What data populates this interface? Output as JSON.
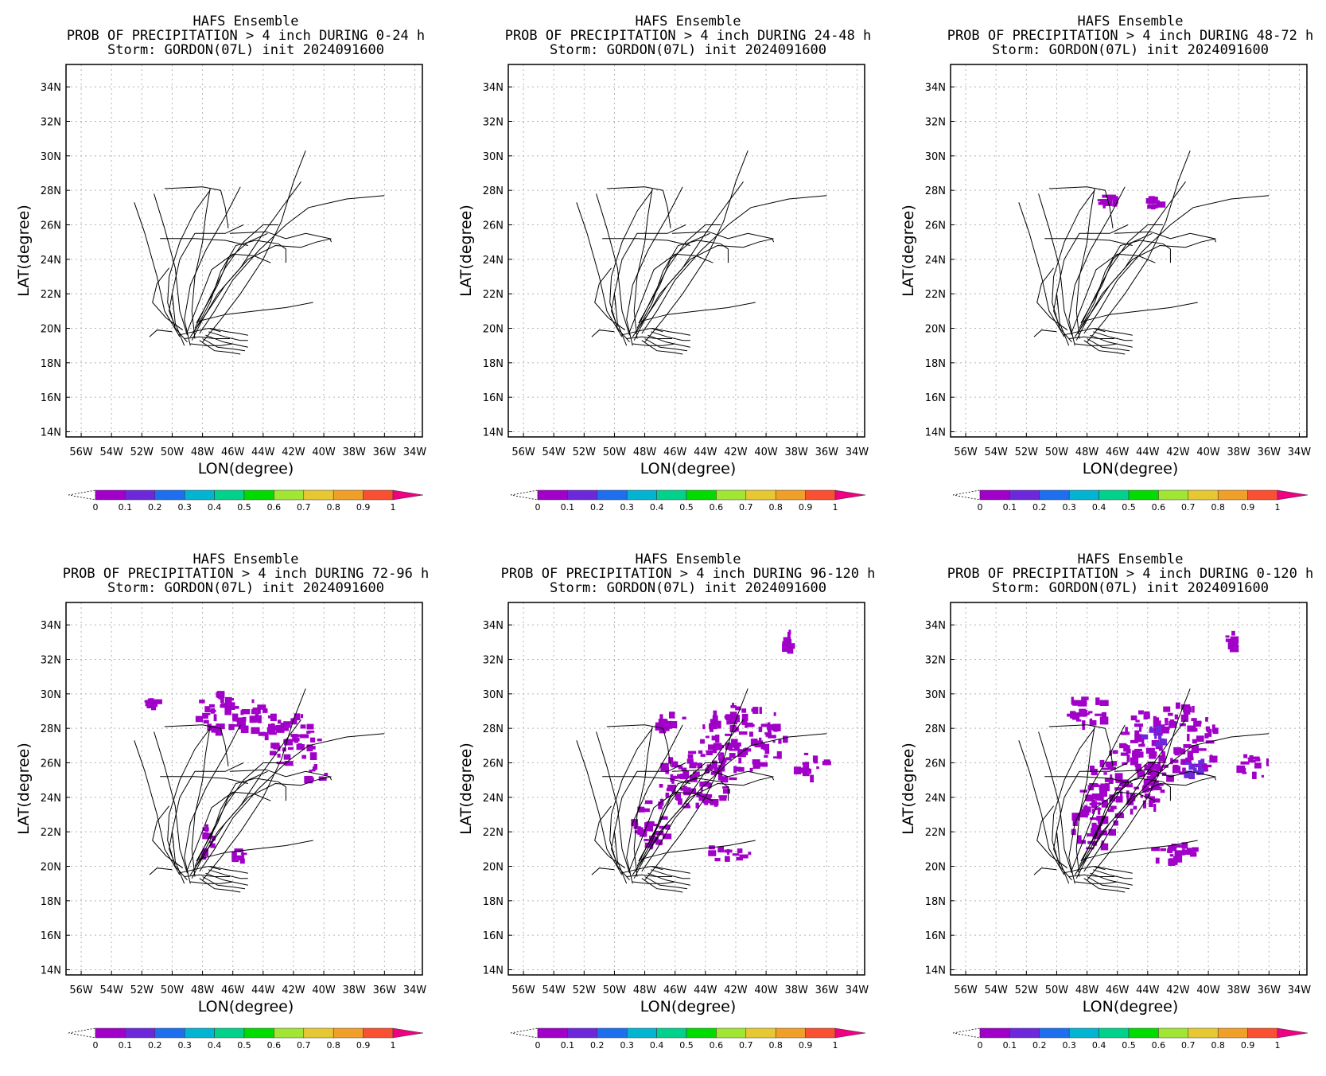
{
  "chart_data": [
    {
      "type": "heatmap",
      "title": [
        "HAFS Ensemble",
        "PROB OF PRECIPITATION > 4 inch DURING  0-24 h",
        "Storm: GORDON(07L) init 2024091600"
      ],
      "xlabel": "LON(degree)",
      "ylabel": "LAT(degree)",
      "x_ticks": [
        "56W",
        "54W",
        "52W",
        "50W",
        "48W",
        "46W",
        "44W",
        "42W",
        "40W",
        "38W",
        "36W",
        "34W"
      ],
      "y_ticks": [
        "14N",
        "16N",
        "18N",
        "20N",
        "22N",
        "24N",
        "26N",
        "28N",
        "30N",
        "32N",
        "34N"
      ],
      "xlim": [
        -57,
        -33.5
      ],
      "ylim": [
        13.7,
        35.3
      ],
      "grid": true,
      "colorbar": {
        "labels": [
          "0",
          "0.1",
          "0.2",
          "0.3",
          "0.4",
          "0.5",
          "0.6",
          "0.7",
          "0.8",
          "0.9",
          "1"
        ]
      },
      "probability_areas": []
    },
    {
      "type": "heatmap",
      "title": [
        "HAFS Ensemble",
        "PROB OF PRECIPITATION > 4 inch DURING 24-48 h",
        "Storm: GORDON(07L) init 2024091600"
      ],
      "xlabel": "LON(degree)",
      "ylabel": "LAT(degree)",
      "x_ticks": [
        "56W",
        "54W",
        "52W",
        "50W",
        "48W",
        "46W",
        "44W",
        "42W",
        "40W",
        "38W",
        "36W",
        "34W"
      ],
      "y_ticks": [
        "14N",
        "16N",
        "18N",
        "20N",
        "22N",
        "24N",
        "26N",
        "28N",
        "30N",
        "32N",
        "34N"
      ],
      "xlim": [
        -57,
        -33.5
      ],
      "ylim": [
        13.7,
        35.3
      ],
      "grid": true,
      "colorbar": {
        "labels": [
          "0",
          "0.1",
          "0.2",
          "0.3",
          "0.4",
          "0.5",
          "0.6",
          "0.7",
          "0.8",
          "0.9",
          "1"
        ]
      },
      "probability_areas": []
    },
    {
      "type": "heatmap",
      "title": [
        "HAFS Ensemble",
        "PROB OF PRECIPITATION > 4 inch DURING 48-72 h",
        "Storm: GORDON(07L) init 2024091600"
      ],
      "xlabel": "LON(degree)",
      "ylabel": "LAT(degree)",
      "x_ticks": [
        "56W",
        "54W",
        "52W",
        "50W",
        "48W",
        "46W",
        "44W",
        "42W",
        "40W",
        "38W",
        "36W",
        "34W"
      ],
      "y_ticks": [
        "14N",
        "16N",
        "18N",
        "20N",
        "22N",
        "24N",
        "26N",
        "28N",
        "30N",
        "32N",
        "34N"
      ],
      "xlim": [
        -57,
        -33.5
      ],
      "ylim": [
        13.7,
        35.3
      ],
      "grid": true,
      "colorbar": {
        "labels": [
          "0",
          "0.1",
          "0.2",
          "0.3",
          "0.4",
          "0.5",
          "0.6",
          "0.7",
          "0.8",
          "0.9",
          "1"
        ]
      },
      "probability_areas": [
        {
          "lon": -46.7,
          "lat": 27.3,
          "rlon": 0.7,
          "rlat": 0.45,
          "prob": 0.05
        },
        {
          "lon": -43.6,
          "lat": 27.2,
          "rlon": 0.5,
          "rlat": 0.3,
          "prob": 0.05
        }
      ]
    },
    {
      "type": "heatmap",
      "title": [
        "HAFS Ensemble",
        "PROB OF PRECIPITATION > 4 inch DURING 72-96 h",
        "Storm: GORDON(07L) init 2024091600"
      ],
      "xlabel": "LON(degree)",
      "ylabel": "LAT(degree)",
      "x_ticks": [
        "56W",
        "54W",
        "52W",
        "50W",
        "48W",
        "46W",
        "44W",
        "42W",
        "40W",
        "38W",
        "36W",
        "34W"
      ],
      "y_ticks": [
        "14N",
        "16N",
        "18N",
        "20N",
        "22N",
        "24N",
        "26N",
        "28N",
        "30N",
        "32N",
        "34N"
      ],
      "xlim": [
        -57,
        -33.5
      ],
      "ylim": [
        13.7,
        35.3
      ],
      "grid": true,
      "colorbar": {
        "labels": [
          "0",
          "0.1",
          "0.2",
          "0.3",
          "0.4",
          "0.5",
          "0.6",
          "0.7",
          "0.8",
          "0.9",
          "1"
        ]
      },
      "probability_areas": [
        {
          "lon": -47.0,
          "lat": 28.8,
          "rlon": 1.5,
          "rlat": 1.2,
          "prob": 0.05
        },
        {
          "lon": -44.5,
          "lat": 28.5,
          "rlon": 1.6,
          "rlat": 1.1,
          "prob": 0.05
        },
        {
          "lon": -42.0,
          "lat": 27.3,
          "rlon": 1.8,
          "rlat": 1.5,
          "prob": 0.06
        },
        {
          "lon": -40.5,
          "lat": 25.2,
          "rlon": 0.8,
          "rlat": 0.6,
          "prob": 0.05
        },
        {
          "lon": -47.7,
          "lat": 21.3,
          "rlon": 0.5,
          "rlat": 1.0,
          "prob": 0.05
        },
        {
          "lon": -51.3,
          "lat": 29.4,
          "rlon": 0.4,
          "rlat": 0.3,
          "prob": 0.05
        },
        {
          "lon": -45.5,
          "lat": 20.6,
          "rlon": 0.5,
          "rlat": 0.35,
          "prob": 0.05
        }
      ]
    },
    {
      "type": "heatmap",
      "title": [
        "HAFS Ensemble",
        "PROB OF PRECIPITATION > 4 inch DURING 96-120 h",
        "Storm: GORDON(07L) init 2024091600"
      ],
      "xlabel": "LON(degree)",
      "ylabel": "LAT(degree)",
      "x_ticks": [
        "56W",
        "54W",
        "52W",
        "50W",
        "48W",
        "46W",
        "44W",
        "42W",
        "40W",
        "38W",
        "36W",
        "34W"
      ],
      "y_ticks": [
        "14N",
        "16N",
        "18N",
        "20N",
        "22N",
        "24N",
        "26N",
        "28N",
        "30N",
        "32N",
        "34N"
      ],
      "xlim": [
        -57,
        -33.5
      ],
      "ylim": [
        13.7,
        35.3
      ],
      "grid": true,
      "colorbar": {
        "labels": [
          "0",
          "0.1",
          "0.2",
          "0.3",
          "0.4",
          "0.5",
          "0.6",
          "0.7",
          "0.8",
          "0.9",
          "1"
        ]
      },
      "probability_areas": [
        {
          "lon": -41.5,
          "lat": 27.5,
          "rlon": 2.8,
          "rlat": 2.0,
          "prob": 0.07
        },
        {
          "lon": -44.5,
          "lat": 25.0,
          "rlon": 2.5,
          "rlat": 1.8,
          "prob": 0.06
        },
        {
          "lon": -47.5,
          "lat": 22.5,
          "rlon": 1.3,
          "rlat": 1.5,
          "prob": 0.05
        },
        {
          "lon": -37.0,
          "lat": 25.8,
          "rlon": 1.1,
          "rlat": 0.8,
          "prob": 0.05
        },
        {
          "lon": -42.5,
          "lat": 20.8,
          "rlon": 1.5,
          "rlat": 0.5,
          "prob": 0.05
        },
        {
          "lon": -38.5,
          "lat": 33.0,
          "rlon": 0.3,
          "rlat": 0.6,
          "prob": 0.05
        },
        {
          "lon": -46.5,
          "lat": 28.3,
          "rlon": 1.2,
          "rlat": 0.8,
          "prob": 0.05
        }
      ]
    },
    {
      "type": "heatmap",
      "title": [
        "HAFS Ensemble",
        "PROB OF PRECIPITATION > 4 inch DURING 0-120 h",
        "Storm: GORDON(07L) init 2024091600"
      ],
      "xlabel": "LON(degree)",
      "ylabel": "LAT(degree)",
      "x_ticks": [
        "56W",
        "54W",
        "52W",
        "50W",
        "48W",
        "46W",
        "44W",
        "42W",
        "40W",
        "38W",
        "36W",
        "34W"
      ],
      "y_ticks": [
        "14N",
        "16N",
        "18N",
        "20N",
        "22N",
        "24N",
        "26N",
        "28N",
        "30N",
        "32N",
        "34N"
      ],
      "xlim": [
        -57,
        -33.5
      ],
      "ylim": [
        13.7,
        35.3
      ],
      "grid": true,
      "colorbar": {
        "labels": [
          "0",
          "0.1",
          "0.2",
          "0.3",
          "0.4",
          "0.5",
          "0.6",
          "0.7",
          "0.8",
          "0.9",
          "1"
        ]
      },
      "probability_areas": [
        {
          "lon": -42.5,
          "lat": 27.2,
          "rlon": 3.2,
          "rlat": 2.2,
          "prob": 0.08
        },
        {
          "lon": -45.5,
          "lat": 24.8,
          "rlon": 2.8,
          "rlat": 2.0,
          "prob": 0.07
        },
        {
          "lon": -47.5,
          "lat": 22.5,
          "rlon": 1.5,
          "rlat": 1.6,
          "prob": 0.06
        },
        {
          "lon": -37.0,
          "lat": 25.8,
          "rlon": 1.1,
          "rlat": 0.8,
          "prob": 0.05
        },
        {
          "lon": -42.5,
          "lat": 20.8,
          "rlon": 2.0,
          "rlat": 0.6,
          "prob": 0.05
        },
        {
          "lon": -38.5,
          "lat": 33.0,
          "rlon": 0.3,
          "rlat": 0.6,
          "prob": 0.05
        },
        {
          "lon": -48.0,
          "lat": 29.0,
          "rlon": 1.5,
          "rlat": 0.9,
          "prob": 0.06
        },
        {
          "lon": -43.5,
          "lat": 27.5,
          "rlon": 0.8,
          "rlat": 0.5,
          "prob": 0.15
        },
        {
          "lon": -41.0,
          "lat": 25.8,
          "rlon": 0.8,
          "rlat": 0.6,
          "prob": 0.18
        }
      ]
    }
  ],
  "tracks": [
    [
      [
        -49.0,
        19.2
      ],
      [
        -49.8,
        20.0
      ],
      [
        -50.3,
        21.5
      ],
      [
        -50.2,
        23.0
      ],
      [
        -49.5,
        25.0
      ],
      [
        -48.5,
        26.8
      ],
      [
        -47.5,
        28.0
      ]
    ],
    [
      [
        -48.8,
        19.0
      ],
      [
        -49.2,
        20.5
      ],
      [
        -48.8,
        22.5
      ],
      [
        -47.8,
        24.5
      ],
      [
        -46.5,
        26.5
      ],
      [
        -45.5,
        28.2
      ]
    ],
    [
      [
        -49.5,
        19.5
      ],
      [
        -50.5,
        21.0
      ],
      [
        -51.0,
        23.0
      ],
      [
        -51.8,
        25.5
      ],
      [
        -52.5,
        27.3
      ]
    ],
    [
      [
        -49.0,
        19.6
      ],
      [
        -49.5,
        21.0
      ],
      [
        -49.8,
        23.5
      ],
      [
        -50.5,
        25.8
      ],
      [
        -51.2,
        27.8
      ]
    ],
    [
      [
        -48.5,
        19.4
      ],
      [
        -48.7,
        21.0
      ],
      [
        -48.5,
        23.0
      ],
      [
        -48.0,
        25.0
      ],
      [
        -47.8,
        26.5
      ],
      [
        -47.5,
        28.1
      ]
    ],
    [
      [
        -48.7,
        19.3
      ],
      [
        -48.0,
        20.5
      ],
      [
        -47.0,
        22.0
      ],
      [
        -45.5,
        23.5
      ],
      [
        -44.0,
        25.5
      ],
      [
        -42.6,
        27.2
      ],
      [
        -41.5,
        28.5
      ]
    ],
    [
      [
        -48.2,
        19.7
      ],
      [
        -47.2,
        21.0
      ],
      [
        -46.0,
        22.8
      ],
      [
        -44.3,
        24.5
      ],
      [
        -42.5,
        26.0
      ],
      [
        -41.0,
        27.0
      ],
      [
        -38.5,
        27.5
      ],
      [
        -36.0,
        27.7
      ]
    ],
    [
      [
        -48.0,
        19.2
      ],
      [
        -46.8,
        20.5
      ],
      [
        -45.5,
        22.0
      ],
      [
        -44.0,
        24.0
      ],
      [
        -42.8,
        26.2
      ],
      [
        -42.0,
        28.5
      ],
      [
        -41.2,
        30.3
      ]
    ],
    [
      [
        -48.5,
        20.0
      ],
      [
        -47.5,
        21.8
      ],
      [
        -46.5,
        23.5
      ],
      [
        -45.3,
        25.0
      ],
      [
        -44.0,
        26.0
      ],
      [
        -43.0,
        26.0
      ]
    ],
    [
      [
        -49.2,
        19.0
      ],
      [
        -49.8,
        20.3
      ],
      [
        -50.0,
        22.0
      ],
      [
        -49.5,
        24.0
      ],
      [
        -48.5,
        25.5
      ],
      [
        -46.5,
        25.5
      ],
      [
        -45.3,
        26.0
      ]
    ],
    [
      [
        -48.8,
        19.5
      ],
      [
        -47.8,
        20.8
      ],
      [
        -46.5,
        22.5
      ],
      [
        -45.0,
        24.0
      ],
      [
        -43.2,
        24.8
      ],
      [
        -41.5,
        24.7
      ],
      [
        -40.5,
        25.0
      ],
      [
        -39.5,
        25.2
      ]
    ],
    [
      [
        -48.6,
        19.7
      ],
      [
        -47.5,
        21.5
      ],
      [
        -46.8,
        23.3
      ],
      [
        -45.8,
        24.8
      ],
      [
        -44.5,
        25.1
      ],
      [
        -43.0,
        24.9
      ],
      [
        -42.5,
        24.6
      ]
    ],
    [
      [
        -49.0,
        19.8
      ],
      [
        -48.2,
        21.6
      ],
      [
        -47.4,
        23.4
      ],
      [
        -46.0,
        24.3
      ],
      [
        -44.6,
        24.2
      ],
      [
        -43.5,
        23.8
      ]
    ],
    [
      [
        -48.3,
        20.4
      ],
      [
        -46.5,
        20.8
      ],
      [
        -44.5,
        21.0
      ],
      [
        -42.5,
        21.2
      ],
      [
        -40.7,
        21.5
      ]
    ],
    [
      [
        -50.0,
        19.8
      ],
      [
        -51.0,
        19.9
      ],
      [
        -51.5,
        19.5
      ]
    ],
    [
      [
        -49.3,
        19.9
      ],
      [
        -50.4,
        20.6
      ],
      [
        -51.3,
        21.5
      ],
      [
        -51.0,
        22.6
      ],
      [
        -50.2,
        23.5
      ]
    ],
    [
      [
        -48.4,
        20.3
      ],
      [
        -47.0,
        22.5
      ],
      [
        -46.3,
        24.0
      ],
      [
        -45.0,
        25.0
      ],
      [
        -43.7,
        25.5
      ]
    ],
    [
      [
        -47.5,
        20.0
      ],
      [
        -46.4,
        19.8
      ],
      [
        -45.6,
        19.7
      ],
      [
        -45.0,
        19.6
      ]
    ],
    [
      [
        -47.6,
        19.8
      ],
      [
        -46.5,
        19.5
      ],
      [
        -45.5,
        19.3
      ],
      [
        -45.0,
        19.3
      ]
    ],
    [
      [
        -47.8,
        19.6
      ],
      [
        -46.6,
        19.2
      ],
      [
        -45.5,
        19.0
      ],
      [
        -45.0,
        18.9
      ]
    ],
    [
      [
        -48.0,
        19.4
      ],
      [
        -47.0,
        18.9
      ],
      [
        -46.0,
        18.8
      ],
      [
        -45.2,
        18.7
      ]
    ],
    [
      [
        -48.2,
        19.3
      ],
      [
        -47.2,
        18.7
      ],
      [
        -46.2,
        18.6
      ],
      [
        -45.5,
        18.5
      ]
    ],
    [
      [
        -48.8,
        19.1
      ],
      [
        -47.8,
        19.0
      ],
      [
        -46.8,
        19.0
      ],
      [
        -46.0,
        19.1
      ]
    ],
    [
      [
        -49.2,
        19.4
      ],
      [
        -48.2,
        19.5
      ],
      [
        -47.2,
        19.4
      ],
      [
        -46.2,
        19.4
      ]
    ],
    [
      [
        -49.6,
        19.6
      ],
      [
        -48.6,
        19.8
      ],
      [
        -47.6,
        20.0
      ],
      [
        -46.8,
        19.8
      ]
    ],
    [
      [
        -50.8,
        25.2
      ],
      [
        -48.5,
        25.2
      ],
      [
        -46.5,
        25.1
      ],
      [
        -45.0,
        24.8
      ]
    ],
    [
      [
        -50.5,
        28.1
      ],
      [
        -48.0,
        28.2
      ],
      [
        -46.8,
        28.0
      ],
      [
        -46.5,
        27.0
      ],
      [
        -46.3,
        25.8
      ]
    ],
    [
      [
        -46.2,
        25.5
      ],
      [
        -43.8,
        25.6
      ],
      [
        -42.5,
        25.2
      ],
      [
        -41.2,
        25.5
      ],
      [
        -39.6,
        25.2
      ],
      [
        -39.5,
        25.0
      ]
    ],
    [
      [
        -42.5,
        24.6
      ],
      [
        -42.5,
        23.8
      ]
    ],
    [
      [
        -49.8,
        20.1
      ],
      [
        -50.2,
        21.0
      ],
      [
        -50.0,
        22.0
      ],
      [
        -49.9,
        21.2
      ]
    ]
  ]
}
